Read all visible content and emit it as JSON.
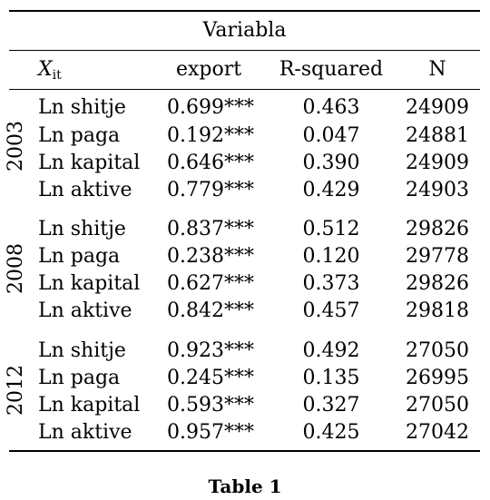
{
  "header": {
    "group_title": "Variabla",
    "col_x_main": "X",
    "col_x_sub": "it",
    "col_export": "export",
    "col_rsq": "R-squared",
    "col_n": "N"
  },
  "groups": [
    {
      "year": "2003",
      "rows": [
        {
          "label": "Ln shitje",
          "export": "0.699***",
          "rsq": "0.463",
          "n": "24909"
        },
        {
          "label": "Ln paga",
          "export": "0.192***",
          "rsq": "0.047",
          "n": "24881"
        },
        {
          "label": "Ln kapital",
          "export": "0.646***",
          "rsq": "0.390",
          "n": "24909"
        },
        {
          "label": "Ln aktive",
          "export": "0.779***",
          "rsq": "0.429",
          "n": "24903"
        }
      ]
    },
    {
      "year": "2008",
      "rows": [
        {
          "label": "Ln shitje",
          "export": "0.837***",
          "rsq": "0.512",
          "n": "29826"
        },
        {
          "label": "Ln paga",
          "export": "0.238***",
          "rsq": "0.120",
          "n": "29778"
        },
        {
          "label": "Ln kapital",
          "export": "0.627***",
          "rsq": "0.373",
          "n": "29826"
        },
        {
          "label": "Ln aktive",
          "export": "0.842***",
          "rsq": "0.457",
          "n": "29818"
        }
      ]
    },
    {
      "year": "2012",
      "rows": [
        {
          "label": "Ln shitje",
          "export": "0.923***",
          "rsq": "0.492",
          "n": "27050"
        },
        {
          "label": "Ln paga",
          "export": "0.245***",
          "rsq": "0.135",
          "n": "26995"
        },
        {
          "label": "Ln kapital",
          "export": "0.593***",
          "rsq": "0.327",
          "n": "27050"
        },
        {
          "label": "Ln aktive",
          "export": "0.957***",
          "rsq": "0.425",
          "n": "27042"
        }
      ]
    }
  ],
  "caption": "Table 1"
}
